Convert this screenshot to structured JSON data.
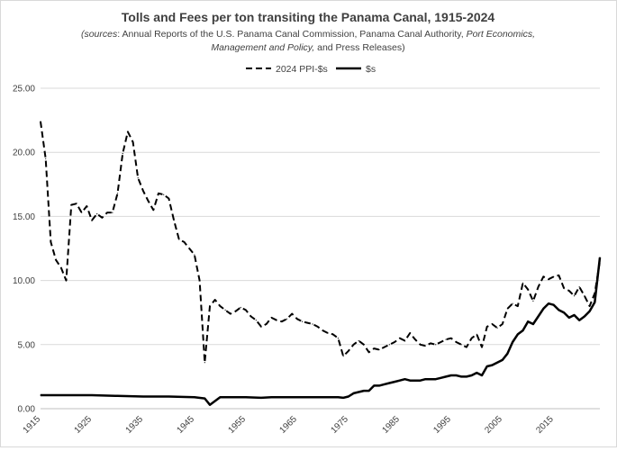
{
  "chart_data": {
    "type": "line",
    "title": "Tolls and Fees per ton transiting the Panama Canal, 1915-2024",
    "subtitle_parts": [
      {
        "text": "(",
        "italic": true
      },
      {
        "text": "sources",
        "italic": true
      },
      {
        "text": ": Annual Reports of the U.S. Panama Canal Commission, Panama Canal Authority, ",
        "italic": false
      },
      {
        "text": "Port Economics,",
        "italic": true
      }
    ],
    "subtitle_line2_parts": [
      {
        "text": "Management and Policy,",
        "italic": true
      },
      {
        "text": " and Press Releases)",
        "italic": false
      }
    ],
    "xlim": [
      1915,
      2024
    ],
    "ylim": [
      0,
      25
    ],
    "x_ticks": [
      "1915",
      "1925",
      "1935",
      "1945",
      "1955",
      "1965",
      "1975",
      "1985",
      "1995",
      "2005",
      "2015"
    ],
    "y_ticks": [
      "0.00",
      "5.00",
      "10.00",
      "15.00",
      "20.00",
      "25.00"
    ],
    "legend_position": "top-center",
    "grid": "horizontal",
    "series": [
      {
        "name": "2024 PPI-$s",
        "style": "dashed",
        "color": "#000000",
        "x": [
          1915,
          1916,
          1917,
          1918,
          1919,
          1920,
          1921,
          1922,
          1923,
          1924,
          1925,
          1926,
          1927,
          1928,
          1929,
          1930,
          1931,
          1932,
          1933,
          1934,
          1935,
          1936,
          1937,
          1938,
          1939,
          1940,
          1941,
          1942,
          1943,
          1944,
          1945,
          1946,
          1947,
          1948,
          1949,
          1950,
          1951,
          1952,
          1953,
          1954,
          1955,
          1956,
          1957,
          1958,
          1959,
          1960,
          1961,
          1962,
          1963,
          1964,
          1965,
          1966,
          1967,
          1968,
          1969,
          1970,
          1971,
          1972,
          1973,
          1974,
          1975,
          1976,
          1977,
          1978,
          1979,
          1980,
          1981,
          1982,
          1983,
          1984,
          1985,
          1986,
          1987,
          1988,
          1989,
          1990,
          1991,
          1992,
          1993,
          1994,
          1995,
          1996,
          1997,
          1998,
          1999,
          2000,
          2001,
          2002,
          2003,
          2004,
          2005,
          2006,
          2007,
          2008,
          2009,
          2010,
          2011,
          2012,
          2013,
          2014,
          2015,
          2016,
          2017,
          2018,
          2019,
          2020,
          2021,
          2022,
          2023,
          2024
        ],
        "values": [
          22.4,
          19.5,
          13.0,
          11.6,
          11.0,
          10.0,
          15.9,
          16.0,
          15.3,
          15.8,
          14.7,
          15.2,
          14.9,
          15.3,
          15.3,
          16.8,
          19.9,
          21.6,
          20.8,
          18.0,
          17.0,
          16.2,
          15.5,
          16.8,
          16.7,
          16.4,
          14.7,
          13.2,
          13.0,
          12.5,
          12.0,
          10.0,
          3.6,
          8.0,
          8.5,
          8.0,
          7.7,
          7.4,
          7.6,
          7.9,
          7.7,
          7.2,
          6.9,
          6.4,
          6.6,
          7.1,
          6.9,
          6.8,
          7.0,
          7.4,
          7.0,
          6.8,
          6.7,
          6.6,
          6.4,
          6.1,
          5.9,
          5.8,
          5.5,
          4.1,
          4.5,
          5.0,
          5.3,
          5.0,
          4.4,
          4.7,
          4.6,
          4.8,
          5.0,
          5.2,
          5.5,
          5.3,
          5.9,
          5.4,
          5.0,
          4.9,
          5.1,
          5.0,
          5.2,
          5.4,
          5.5,
          5.2,
          5.0,
          4.8,
          5.5,
          5.8,
          4.8,
          6.4,
          6.6,
          6.3,
          6.6,
          7.8,
          8.2,
          8.0,
          9.8,
          9.3,
          8.4,
          9.5,
          10.3,
          10.1,
          10.3,
          10.4,
          9.4,
          9.2,
          8.8,
          9.5,
          8.8,
          8.0,
          9.0,
          11.5
        ]
      },
      {
        "name": "$s",
        "style": "solid",
        "color": "#000000",
        "x": [
          1915,
          1920,
          1925,
          1930,
          1935,
          1940,
          1945,
          1947,
          1948,
          1950,
          1955,
          1958,
          1960,
          1965,
          1970,
          1973,
          1974,
          1975,
          1976,
          1977,
          1978,
          1979,
          1980,
          1981,
          1982,
          1983,
          1984,
          1985,
          1986,
          1987,
          1988,
          1989,
          1990,
          1991,
          1992,
          1993,
          1994,
          1995,
          1996,
          1997,
          1998,
          1999,
          2000,
          2001,
          2002,
          2003,
          2004,
          2005,
          2006,
          2007,
          2008,
          2009,
          2010,
          2011,
          2012,
          2013,
          2014,
          2015,
          2016,
          2017,
          2018,
          2019,
          2020,
          2021,
          2022,
          2023,
          2024
        ],
        "values": [
          1.05,
          1.05,
          1.05,
          1.0,
          0.95,
          0.95,
          0.9,
          0.8,
          0.3,
          0.9,
          0.9,
          0.85,
          0.9,
          0.9,
          0.9,
          0.9,
          0.85,
          0.95,
          1.2,
          1.3,
          1.4,
          1.4,
          1.8,
          1.8,
          1.9,
          2.0,
          2.1,
          2.2,
          2.3,
          2.2,
          2.2,
          2.2,
          2.3,
          2.3,
          2.3,
          2.4,
          2.5,
          2.6,
          2.6,
          2.5,
          2.5,
          2.6,
          2.8,
          2.6,
          3.3,
          3.4,
          3.6,
          3.8,
          4.3,
          5.2,
          5.8,
          6.1,
          6.8,
          6.6,
          7.2,
          7.8,
          8.2,
          8.1,
          7.7,
          7.5,
          7.1,
          7.3,
          6.9,
          7.2,
          7.6,
          8.3,
          11.8
        ]
      }
    ]
  }
}
